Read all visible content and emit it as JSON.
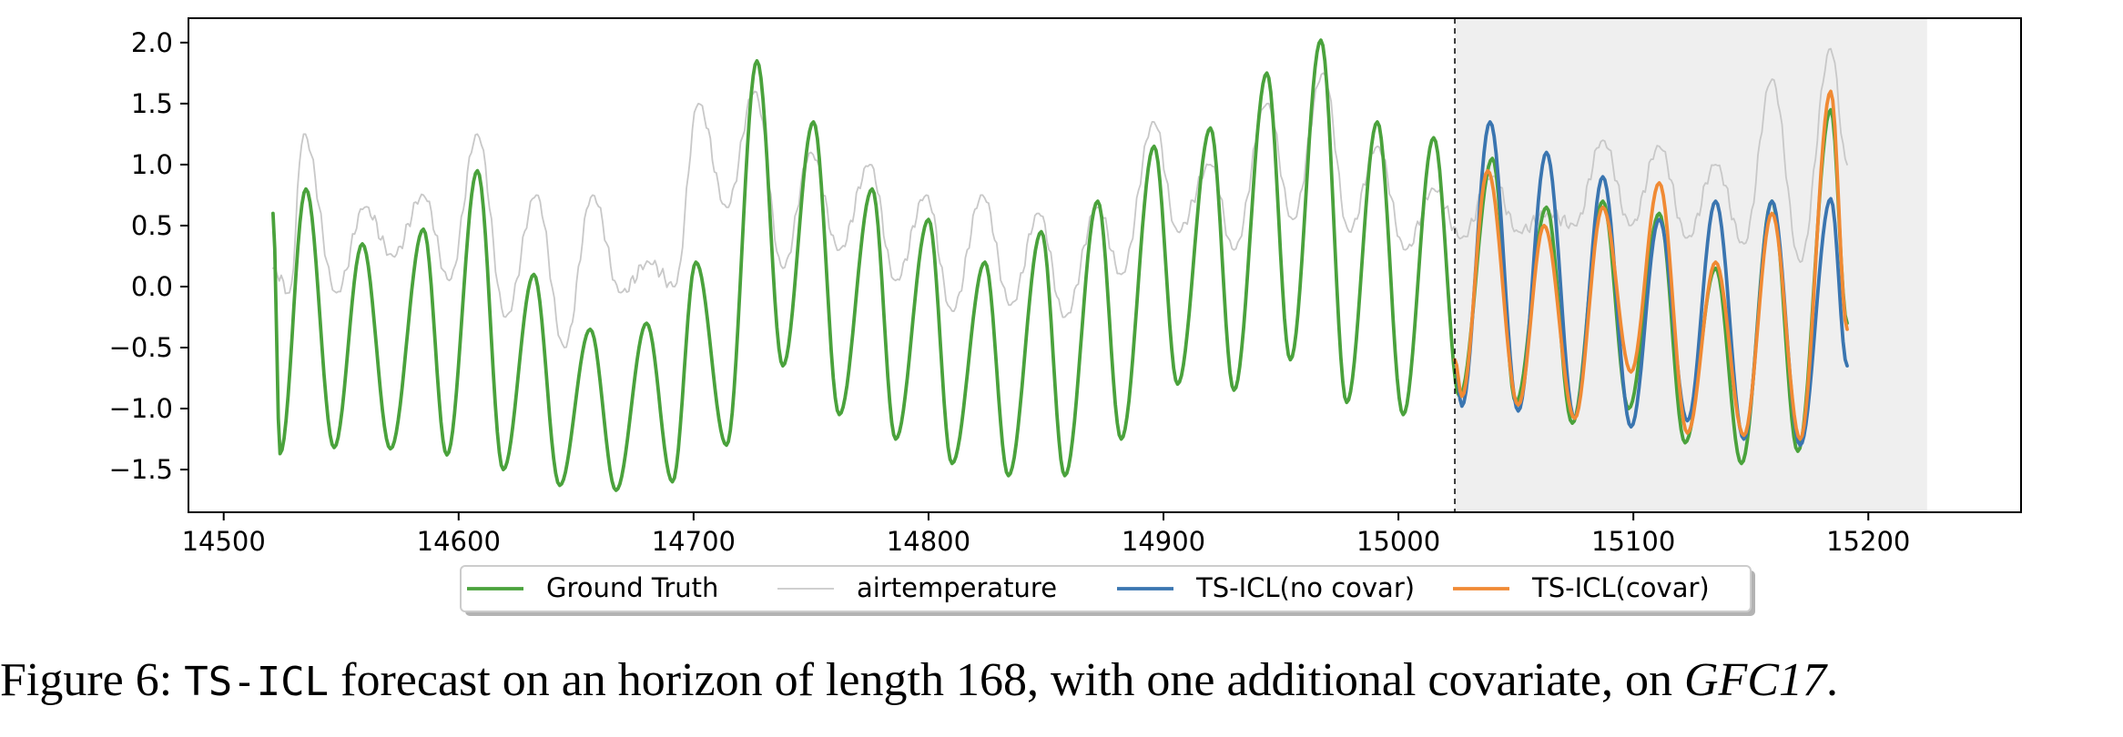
{
  "chart_data": {
    "type": "line",
    "xlim": [
      14485,
      15265
    ],
    "ylim": [
      -1.85,
      2.2
    ],
    "xticks": [
      14500,
      14600,
      14700,
      14800,
      14900,
      15000,
      15100,
      15200
    ],
    "yticks": [
      -1.5,
      -1.0,
      -0.5,
      0.0,
      0.5,
      1.0,
      1.5,
      2.0
    ],
    "ytick_labels": [
      "−1.5",
      "−1.0",
      "−0.5",
      "0.0",
      "0.5",
      "1.0",
      "1.5",
      "2.0"
    ],
    "forecast_start": 15024,
    "shaded_region": [
      15024,
      15225
    ],
    "grid": false,
    "legend_position": "bottom-center",
    "series": [
      {
        "name": "Ground Truth",
        "color": "#4aa23c",
        "peaks": [
          [
            14521,
            0.6
          ],
          [
            14535,
            0.8
          ],
          [
            14559,
            0.35
          ],
          [
            14585,
            0.47
          ],
          [
            14608,
            0.95
          ],
          [
            14632,
            0.1
          ],
          [
            14656,
            -0.35
          ],
          [
            14680,
            -0.3
          ],
          [
            14701,
            0.2
          ],
          [
            14727,
            1.85
          ],
          [
            14751,
            1.35
          ],
          [
            14776,
            0.8
          ],
          [
            14800,
            0.55
          ],
          [
            14824,
            0.2
          ],
          [
            14848,
            0.45
          ],
          [
            14872,
            0.7
          ],
          [
            14896,
            1.15
          ],
          [
            14920,
            1.3
          ],
          [
            14944,
            1.75
          ],
          [
            14967,
            2.02
          ],
          [
            14991,
            1.35
          ],
          [
            15015,
            1.22
          ],
          [
            15040,
            1.05
          ],
          [
            15063,
            0.65
          ],
          [
            15087,
            0.7
          ],
          [
            15111,
            0.6
          ],
          [
            15135,
            0.15
          ],
          [
            15159,
            0.7
          ],
          [
            15184,
            1.45
          ]
        ],
        "troughs": [
          [
            14524,
            -1.37
          ],
          [
            14547,
            -1.32
          ],
          [
            14571,
            -1.33
          ],
          [
            14595,
            -1.38
          ],
          [
            14619,
            -1.5
          ],
          [
            14643,
            -1.63
          ],
          [
            14667,
            -1.67
          ],
          [
            14691,
            -1.6
          ],
          [
            14714,
            -1.3
          ],
          [
            14738,
            -0.65
          ],
          [
            14762,
            -1.05
          ],
          [
            14786,
            -1.25
          ],
          [
            14810,
            -1.45
          ],
          [
            14834,
            -1.55
          ],
          [
            14858,
            -1.55
          ],
          [
            14882,
            -1.25
          ],
          [
            14906,
            -0.8
          ],
          [
            14930,
            -0.85
          ],
          [
            14954,
            -0.6
          ],
          [
            14978,
            -0.95
          ],
          [
            15002,
            -1.05
          ],
          [
            15026,
            -0.9
          ],
          [
            15050,
            -0.95
          ],
          [
            15074,
            -1.12
          ],
          [
            15098,
            -1.0
          ],
          [
            15122,
            -1.28
          ],
          [
            15146,
            -1.45
          ],
          [
            15170,
            -1.35
          ],
          [
            15191,
            -0.3
          ]
        ]
      },
      {
        "name": "airtemperature",
        "color": "#c8c8c8",
        "peaks": [
          [
            14521,
            0.15
          ],
          [
            14534,
            1.25
          ],
          [
            14560,
            0.65
          ],
          [
            14585,
            0.75
          ],
          [
            14608,
            1.25
          ],
          [
            14633,
            0.75
          ],
          [
            14657,
            0.75
          ],
          [
            14681,
            0.2
          ],
          [
            14702,
            1.5
          ],
          [
            14726,
            1.6
          ],
          [
            14750,
            1.1
          ],
          [
            14775,
            1.0
          ],
          [
            14799,
            0.75
          ],
          [
            14823,
            0.75
          ],
          [
            14847,
            0.6
          ],
          [
            14872,
            0.65
          ],
          [
            14896,
            1.35
          ],
          [
            14920,
            1.0
          ],
          [
            14944,
            1.5
          ],
          [
            14968,
            1.75
          ],
          [
            14991,
            1.15
          ],
          [
            15015,
            0.8
          ],
          [
            15040,
            0.9
          ],
          [
            15064,
            0.6
          ],
          [
            15087,
            1.2
          ],
          [
            15111,
            1.15
          ],
          [
            15135,
            1.0
          ],
          [
            15159,
            1.7
          ],
          [
            15184,
            1.95
          ]
        ],
        "troughs": [
          [
            14528,
            -0.05
          ],
          [
            14548,
            -0.05
          ],
          [
            14572,
            0.25
          ],
          [
            14596,
            0.05
          ],
          [
            14620,
            -0.25
          ],
          [
            14645,
            -0.5
          ],
          [
            14669,
            -0.05
          ],
          [
            14692,
            0.0
          ],
          [
            14714,
            0.65
          ],
          [
            14738,
            0.15
          ],
          [
            14762,
            0.3
          ],
          [
            14786,
            0.05
          ],
          [
            14810,
            -0.2
          ],
          [
            14835,
            -0.15
          ],
          [
            14858,
            -0.25
          ],
          [
            14882,
            0.1
          ],
          [
            14906,
            0.45
          ],
          [
            14930,
            0.3
          ],
          [
            14955,
            0.55
          ],
          [
            14979,
            0.45
          ],
          [
            15003,
            0.3
          ],
          [
            15027,
            0.4
          ],
          [
            15051,
            0.45
          ],
          [
            15075,
            0.5
          ],
          [
            15099,
            0.5
          ],
          [
            15123,
            0.4
          ],
          [
            15147,
            0.35
          ],
          [
            15171,
            0.2
          ],
          [
            15191,
            1.0
          ]
        ]
      },
      {
        "name": "TS-ICL(no covar)",
        "color": "#3a75b0",
        "peaks": [
          [
            15024,
            -0.6
          ],
          [
            15039,
            1.35
          ],
          [
            15063,
            1.1
          ],
          [
            15087,
            0.9
          ],
          [
            15111,
            0.55
          ],
          [
            15135,
            0.7
          ],
          [
            15159,
            0.7
          ],
          [
            15184,
            0.72
          ]
        ],
        "troughs": [
          [
            15027,
            -0.98
          ],
          [
            15051,
            -1.02
          ],
          [
            15075,
            -1.08
          ],
          [
            15099,
            -1.15
          ],
          [
            15123,
            -1.1
          ],
          [
            15147,
            -1.25
          ],
          [
            15171,
            -1.3
          ],
          [
            15191,
            -0.65
          ]
        ]
      },
      {
        "name": "TS-ICL(covar)",
        "color": "#f08a34",
        "peaks": [
          [
            15024,
            -0.6
          ],
          [
            15038,
            0.95
          ],
          [
            15062,
            0.5
          ],
          [
            15087,
            0.65
          ],
          [
            15111,
            0.85
          ],
          [
            15135,
            0.2
          ],
          [
            15159,
            0.6
          ],
          [
            15184,
            1.6
          ]
        ],
        "troughs": [
          [
            15027,
            -0.9
          ],
          [
            15051,
            -0.97
          ],
          [
            15075,
            -1.08
          ],
          [
            15099,
            -0.7
          ],
          [
            15123,
            -1.2
          ],
          [
            15147,
            -1.22
          ],
          [
            15171,
            -1.25
          ],
          [
            15191,
            -0.35
          ]
        ]
      }
    ]
  },
  "caption": {
    "prefix": "Figure 6: ",
    "code": "TS-ICL",
    "middle": " forecast on an horizon of length 168, with one additional covariate, on ",
    "dataset": "GFC17",
    "suffix": "."
  }
}
